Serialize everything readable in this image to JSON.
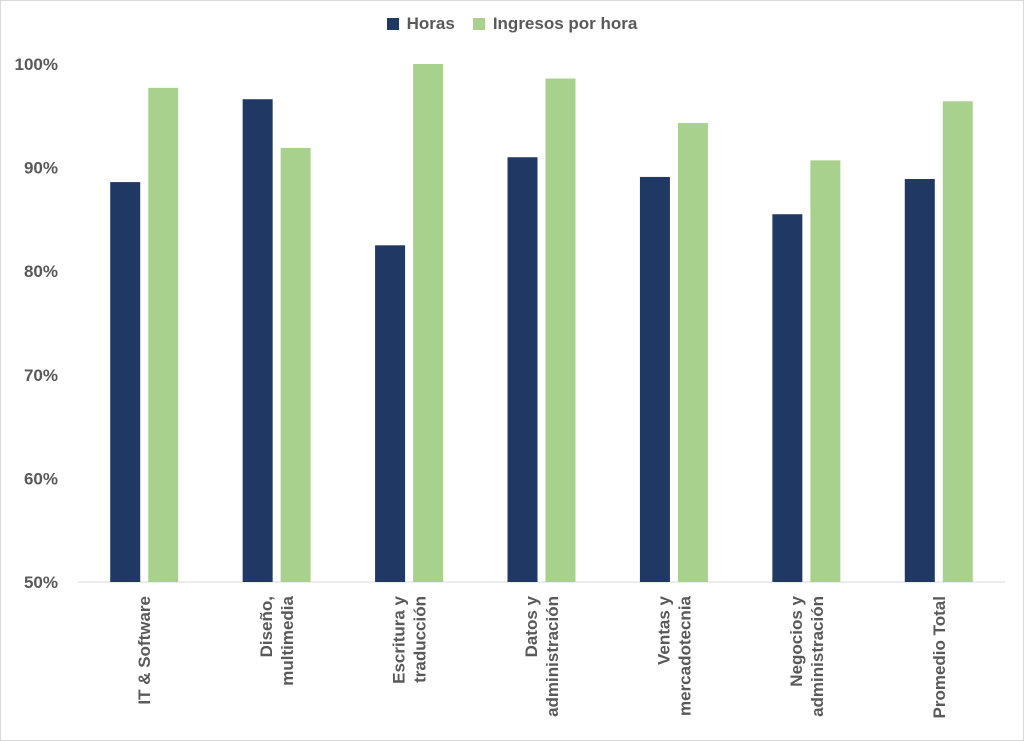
{
  "chart_data": {
    "type": "bar",
    "categories": [
      [
        "IT & Software"
      ],
      [
        "Diseño,",
        "multimedia"
      ],
      [
        "Escritura y",
        "traducción"
      ],
      [
        "Datos y",
        "administración"
      ],
      [
        "Ventas y",
        "mercadotecnia"
      ],
      [
        "Negocios y",
        "administración"
      ],
      [
        "Promedio Total"
      ]
    ],
    "series": [
      {
        "name": "Horas",
        "color": "#1f3864",
        "values": [
          88.6,
          96.6,
          82.5,
          91.0,
          89.1,
          85.5,
          88.9
        ]
      },
      {
        "name": "Ingresos por hora",
        "color": "#a9d18e",
        "values": [
          97.7,
          91.9,
          100.0,
          98.6,
          94.3,
          90.7,
          96.4
        ]
      }
    ],
    "ylim": [
      50,
      100
    ],
    "yticks": [
      "50%",
      "60%",
      "70%",
      "80%",
      "90%",
      "100%"
    ],
    "ytick_values": [
      50,
      60,
      70,
      80,
      90,
      100
    ],
    "legend_position": "top",
    "grid": false
  }
}
